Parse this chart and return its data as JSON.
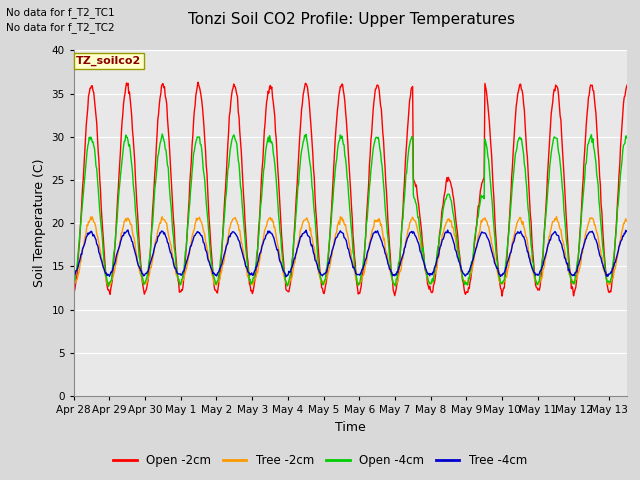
{
  "title": "Tonzi Soil CO2 Profile: Upper Temperatures",
  "xlabel": "Time",
  "ylabel": "Soil Temperature (C)",
  "ylim": [
    0,
    40
  ],
  "yticks": [
    0,
    5,
    10,
    15,
    20,
    25,
    30,
    35,
    40
  ],
  "subtitle_lines": [
    "No data for f_T2_TC1",
    "No data for f_T2_TC2"
  ],
  "dataset_label": "TZ_soilco2",
  "legend_entries": [
    "Open -2cm",
    "Tree -2cm",
    "Open -4cm",
    "Tree -4cm"
  ],
  "line_colors": [
    "#ff0000",
    "#ff9900",
    "#00cc00",
    "#0000cc"
  ],
  "x_tick_labels": [
    "Apr 28",
    "Apr 29",
    "Apr 30",
    "May 1",
    "May 2",
    "May 3",
    "May 4",
    "May 5",
    "May 6",
    "May 7",
    "May 8",
    "May 9",
    "May 10",
    "May 11",
    "May 12",
    "May 13"
  ],
  "background_color": "#d9d9d9",
  "plot_bg_color": "#e8e8e8",
  "grid_color": "#ffffff",
  "n_days": 15.5,
  "points_per_day": 48
}
